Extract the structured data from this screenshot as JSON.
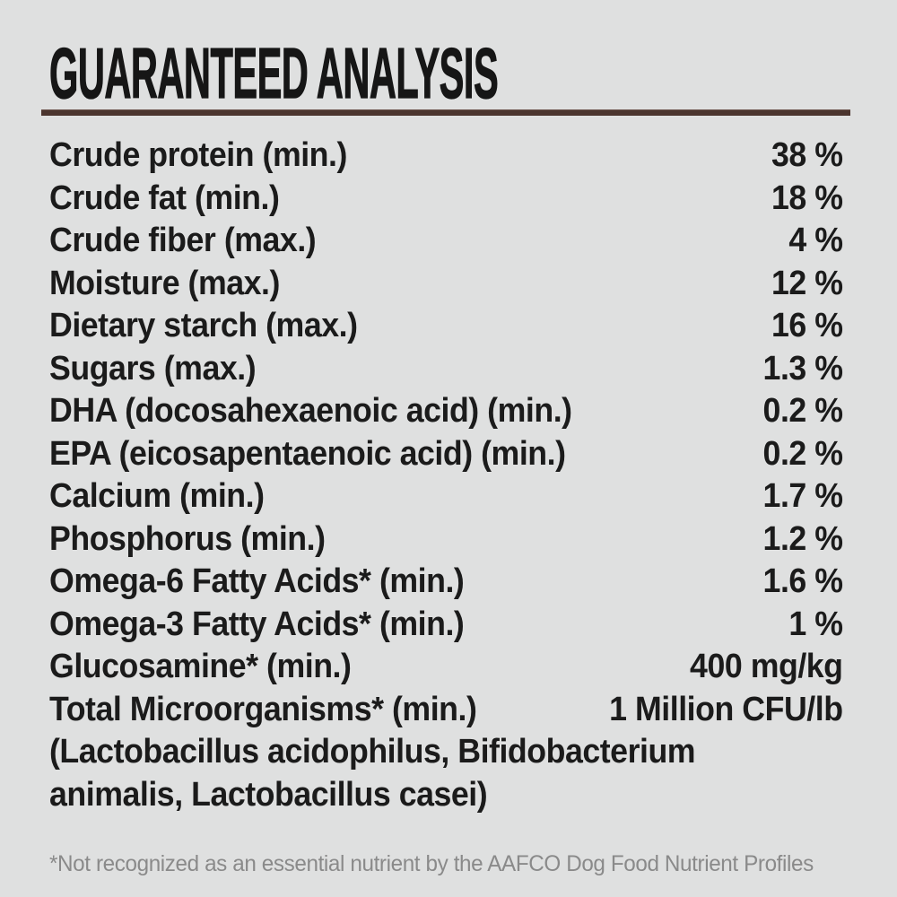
{
  "page": {
    "background_color": "#dfe0e0"
  },
  "header": {
    "title": "GUARANTEED ANALYSIS",
    "title_color": "#161616",
    "rule_color": "#4b352e"
  },
  "analysis": {
    "text_color": "#1b1b1b",
    "rows": [
      {
        "label": "Crude protein (min.)",
        "value": "38 %"
      },
      {
        "label": "Crude fat (min.)",
        "value": "18 %"
      },
      {
        "label": "Crude fiber (max.)",
        "value": "4 %"
      },
      {
        "label": "Moisture (max.)",
        "value": "12 %"
      },
      {
        "label": "Dietary starch (max.)",
        "value": "16 %"
      },
      {
        "label": "Sugars (max.)",
        "value": "1.3 %"
      },
      {
        "label": "DHA (docosahexaenoic acid) (min.)",
        "value": "0.2 %"
      },
      {
        "label": "EPA (eicosapentaenoic acid) (min.)",
        "value": "0.2 %"
      },
      {
        "label": "Calcium (min.)",
        "value": "1.7 %"
      },
      {
        "label": "Phosphorus (min.)",
        "value": "1.2 %"
      },
      {
        "label": "Omega-6 Fatty Acids* (min.)",
        "value": "1.6 %"
      },
      {
        "label": "Omega-3 Fatty Acids* (min.)",
        "value": "1 %"
      },
      {
        "label": "Glucosamine* (min.)",
        "value": "400 mg/kg"
      },
      {
        "label": "Total Microorganisms* (min.)",
        "value": "1 Million CFU/lb"
      }
    ],
    "continuation_lines": [
      "(Lactobacillus acidophilus, Bifidobacterium",
      "animalis, Lactobacillus casei)"
    ]
  },
  "footnote": {
    "text": "*Not recognized as an essential nutrient by the AAFCO Dog Food Nutrient Profiles",
    "color": "#8a8a8a"
  }
}
